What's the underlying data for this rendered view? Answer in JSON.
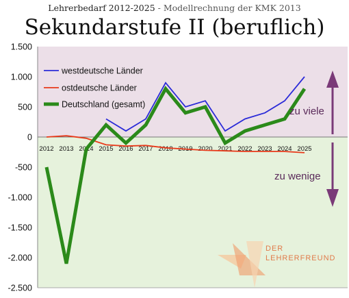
{
  "header": {
    "title_line": "Lehrerbedarf 2012-2025",
    "title_sep": " - ",
    "title_sub": "Modellrechnung der KMK 2013",
    "main_title": "Sekundarstufe II (beruflich)"
  },
  "logo": {
    "line1": "DER",
    "line2": "LEHRERFREUND"
  },
  "colors": {
    "positive_band": "#ecdfe8",
    "negative_band": "#e6f2dc",
    "arrow": "#7a3a78",
    "west": "#2b2bd8",
    "ost": "#e8391a",
    "de": "#2b8a1a"
  },
  "chart_data": {
    "type": "line",
    "x": [
      "2012",
      "2013",
      "2014",
      "2015",
      "2016",
      "2017",
      "2018",
      "2019",
      "2020",
      "2021",
      "2022",
      "2023",
      "2024",
      "2025"
    ],
    "ylim": [
      -2500,
      1500
    ],
    "yticks": [
      1500,
      1000,
      500,
      0,
      -500,
      -1000,
      -1500,
      -2000,
      -2500
    ],
    "ytick_labels": [
      "1.500",
      "1.000",
      "500",
      "0",
      "-500",
      "-1.000",
      "-1.500",
      "-2.000",
      "-2.500"
    ],
    "legend_position": "top-left",
    "series": [
      {
        "name": "westdeutsche Länder",
        "color": "#2b2bd8",
        "values": [
          null,
          null,
          null,
          300,
          100,
          300,
          900,
          500,
          600,
          100,
          300,
          400,
          600,
          1000
        ]
      },
      {
        "name": "ostdeutsche Länder",
        "color": "#e8391a",
        "values": [
          0,
          20,
          -20,
          -130,
          -150,
          -140,
          -180,
          -200,
          -220,
          -230,
          -240,
          -240,
          -240,
          -260
        ]
      },
      {
        "name": "Deutschland (gesamt)",
        "color": "#2b8a1a",
        "values": [
          -500,
          -2100,
          -200,
          200,
          -100,
          200,
          800,
          400,
          500,
          -100,
          100,
          200,
          300,
          800
        ]
      }
    ],
    "annotations": {
      "positive": "zu viele",
      "negative": "zu wenige"
    }
  }
}
